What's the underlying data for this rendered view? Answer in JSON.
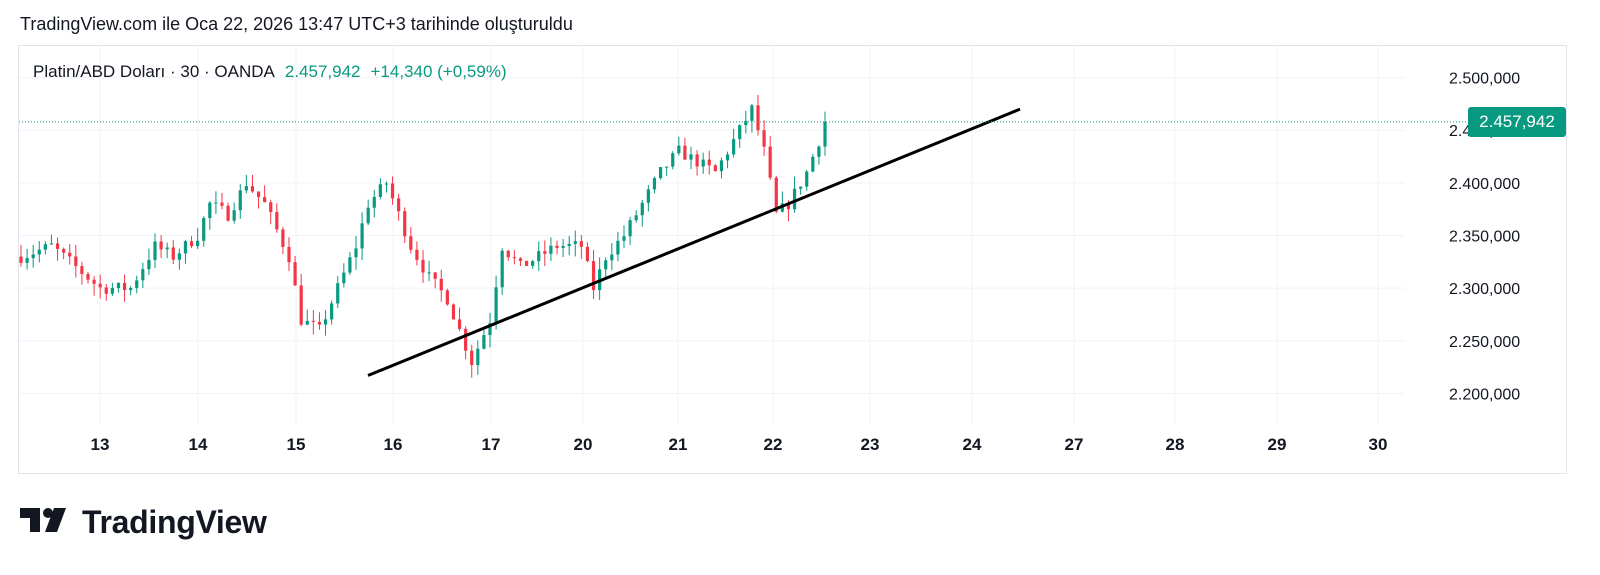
{
  "header": {
    "created_text": "TradingView.com ile Oca 22, 2026 13:47 UTC+3 tarihinde oluşturuldu"
  },
  "legend": {
    "symbol": "Platin/ABD Doları · 30 · OANDA",
    "last": "2.457,942",
    "change": "+14,340 (+0,59%)"
  },
  "price_tag": {
    "label": "2.457,942",
    "value": 2.457942
  },
  "brand": {
    "name": "TradingView",
    "logo_icon": "tradingview-logo-icon"
  },
  "colors": {
    "up": "#089981",
    "down": "#f23645",
    "accent": "#089981",
    "trendline": "#000000",
    "grid": "#f0f3fa"
  },
  "chart_data": {
    "type": "candlestick",
    "title": "Platin/ABD Doları · 30 · OANDA",
    "interval": "30",
    "ylim": [
      2.17,
      2.53
    ],
    "y_ticks": [
      {
        "value": 2.5,
        "label": "2.500,000"
      },
      {
        "value": 2.45,
        "label": "2.450,000"
      },
      {
        "value": 2.4,
        "label": "2.400,000"
      },
      {
        "value": 2.35,
        "label": "2.350,000"
      },
      {
        "value": 2.3,
        "label": "2.300,000"
      },
      {
        "value": 2.25,
        "label": "2.250,000"
      },
      {
        "value": 2.2,
        "label": "2.200,000"
      }
    ],
    "x_ticks": [
      "13",
      "14",
      "15",
      "16",
      "17",
      "20",
      "21",
      "22",
      "23",
      "24",
      "27",
      "28",
      "29",
      "30"
    ],
    "last_price": 2.457942,
    "close_path": [
      [
        0,
        2.33
      ],
      [
        5,
        2.34
      ],
      [
        9,
        2.32
      ],
      [
        13,
        2.3
      ],
      [
        18,
        2.3
      ],
      [
        22,
        2.34
      ],
      [
        25,
        2.33
      ],
      [
        29,
        2.35
      ],
      [
        31,
        2.38
      ],
      [
        34,
        2.37
      ],
      [
        37,
        2.4
      ],
      [
        40,
        2.38
      ],
      [
        44,
        2.33
      ],
      [
        46,
        2.27
      ],
      [
        49,
        2.26
      ],
      [
        52,
        2.3
      ],
      [
        55,
        2.34
      ],
      [
        57,
        2.38
      ],
      [
        60,
        2.4
      ],
      [
        62,
        2.37
      ],
      [
        64,
        2.34
      ],
      [
        67,
        2.31
      ],
      [
        70,
        2.29
      ],
      [
        72,
        2.26
      ],
      [
        74,
        2.23
      ],
      [
        77,
        2.27
      ],
      [
        79,
        2.34
      ],
      [
        82,
        2.32
      ],
      [
        85,
        2.33
      ],
      [
        88,
        2.34
      ],
      [
        92,
        2.34
      ],
      [
        94,
        2.3
      ],
      [
        96,
        2.33
      ],
      [
        99,
        2.35
      ],
      [
        102,
        2.38
      ],
      [
        105,
        2.41
      ],
      [
        108,
        2.43
      ],
      [
        111,
        2.42
      ],
      [
        114,
        2.41
      ],
      [
        117,
        2.44
      ],
      [
        120,
        2.47
      ],
      [
        122,
        2.43
      ],
      [
        124,
        2.37
      ],
      [
        126,
        2.38
      ],
      [
        129,
        2.41
      ],
      [
        132,
        2.455
      ]
    ],
    "trendline": [
      {
        "x": "16",
        "y": 2.217
      },
      {
        "x": "24",
        "y": 2.47
      }
    ]
  }
}
